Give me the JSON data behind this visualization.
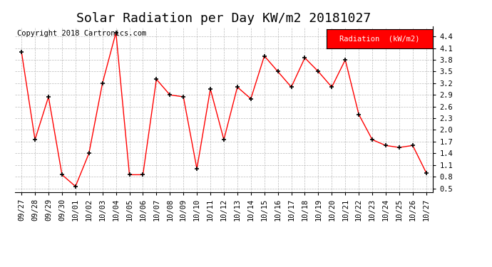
{
  "title": "Solar Radiation per Day KW/m2 20181027",
  "copyright": "Copyright 2018 Cartronics.com",
  "legend_label": "Radiation  (kW/m2)",
  "dates": [
    "09/27",
    "09/28",
    "09/29",
    "09/30",
    "10/01",
    "10/02",
    "10/03",
    "10/04",
    "10/05",
    "10/06",
    "10/07",
    "10/08",
    "10/09",
    "10/10",
    "10/11",
    "10/12",
    "10/13",
    "10/14",
    "10/15",
    "10/16",
    "10/17",
    "10/18",
    "10/19",
    "10/20",
    "10/21",
    "10/22",
    "10/23",
    "10/24",
    "10/25",
    "10/26",
    "10/27"
  ],
  "values": [
    4.0,
    1.75,
    2.85,
    0.85,
    0.55,
    1.4,
    3.2,
    4.5,
    0.85,
    0.85,
    3.3,
    2.9,
    2.85,
    1.0,
    3.05,
    1.75,
    3.1,
    2.8,
    3.9,
    3.5,
    3.1,
    3.85,
    3.5,
    3.1,
    3.8,
    2.4,
    1.75,
    1.6,
    1.55,
    1.6,
    0.9
  ],
  "line_color": "red",
  "marker_color": "black",
  "background_color": "#ffffff",
  "grid_color": "#aaaaaa",
  "legend_bg": "red",
  "legend_fg": "white",
  "ylim": [
    0.4,
    4.65
  ],
  "yticks": [
    0.5,
    0.8,
    1.1,
    1.4,
    1.7,
    2.0,
    2.3,
    2.6,
    2.9,
    3.2,
    3.5,
    3.8,
    4.1,
    4.4
  ],
  "title_fontsize": 13,
  "copyright_fontsize": 7.5,
  "tick_fontsize": 7.5,
  "legend_fontsize": 7.5
}
